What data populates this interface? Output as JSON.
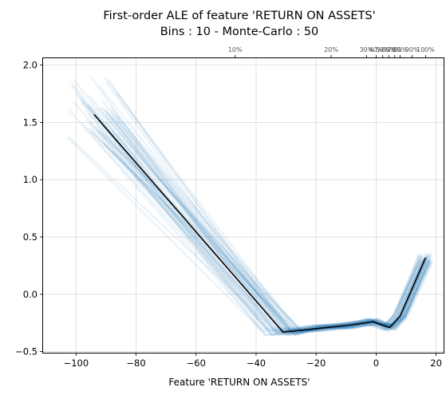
{
  "chart_data": {
    "type": "line",
    "title": "First-order ALE of feature 'RETURN ON ASSETS'",
    "subtitle": "Bins : 10 - Monte-Carlo : 50",
    "xlabel": "Feature 'RETURN ON ASSETS'",
    "ylabel": "",
    "xlim": [
      -111,
      22.5
    ],
    "ylim": [
      -0.51,
      2.06
    ],
    "xticks": [
      -100,
      -80,
      -60,
      -40,
      -20,
      0,
      20
    ],
    "yticks": [
      -0.5,
      0.0,
      0.5,
      1.0,
      1.5,
      2.0
    ],
    "grid": true,
    "ale_line": {
      "color": "#000000",
      "x": [
        -94,
        -31,
        -20,
        -9,
        -1,
        4.5,
        8,
        16.5
      ],
      "y": [
        1.57,
        -0.33,
        -0.3,
        -0.27,
        -0.24,
        -0.29,
        -0.19,
        0.32
      ]
    },
    "monte_carlo": {
      "color": "#1f77b4",
      "count": 50,
      "spread": 0.06
    },
    "decile_axis": {
      "labels": [
        "10%",
        "20%",
        "30%",
        "40%",
        "50%",
        "60%",
        "70%",
        "80%",
        "90%",
        "100%"
      ],
      "positions": [
        -47,
        -15,
        -3.2,
        0,
        2.2,
        4.2,
        6.2,
        8.0,
        12.0,
        16.5
      ]
    }
  }
}
